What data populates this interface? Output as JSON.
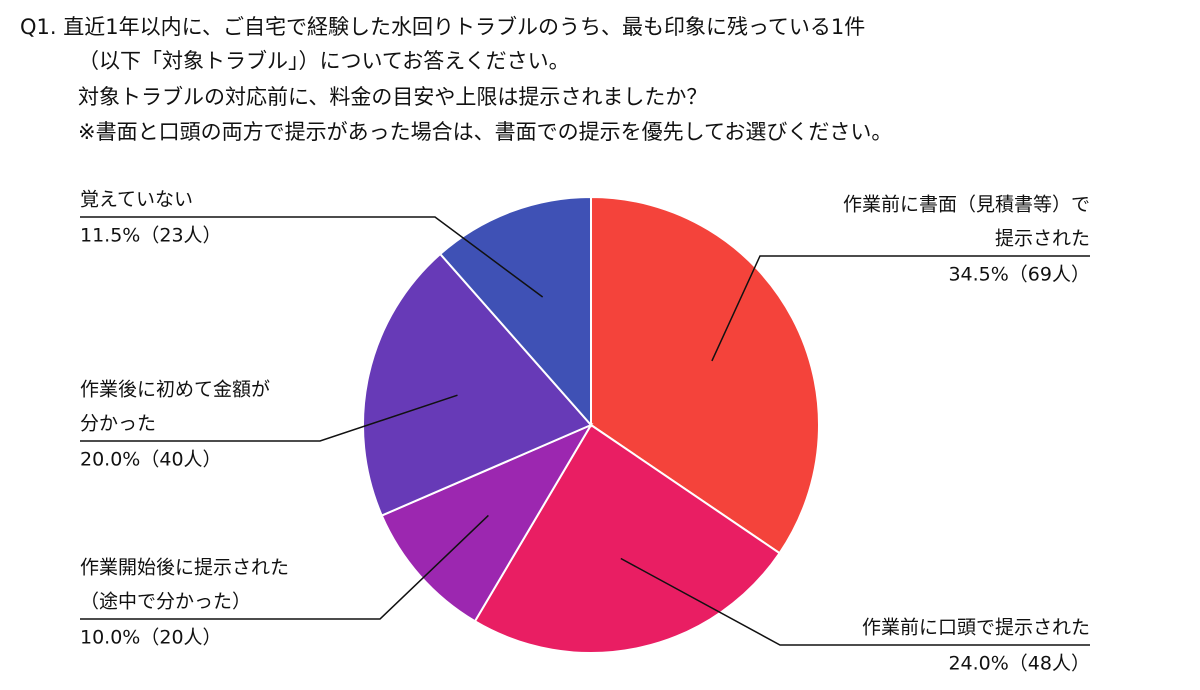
{
  "chart_data": {
    "type": "pie",
    "title": [
      "Q1. 直近1年以内に、ご自宅で経験した水回りトラブルのうち、最も印象に残っている1件",
      "（以下「対象トラブル」）についてお答えください。",
      "対象トラブルの対応前に、料金の目安や上限は提示されましたか？",
      "※書面と口頭の両方で提示があった場合は、書面での提示を優先してお選びください。"
    ],
    "categories": [
      [
        "作業前に書面（見積書等）で",
        "提示された"
      ],
      [
        "作業前に口頭で提示された"
      ],
      [
        "作業開始後に提示された",
        "（途中で分かった）"
      ],
      [
        "作業後に初めて金額が",
        "分かった"
      ],
      [
        "覚えていない"
      ]
    ],
    "values": [
      34.5,
      24.0,
      10.0,
      20.0,
      11.5
    ],
    "value_labels": [
      "34.5%（69人）",
      "24.0%（48人）",
      "10.0%（20人）",
      "20.0%（40人）",
      "11.5%（23人）"
    ],
    "colors": [
      "#f4433b",
      "#e91e63",
      "#9c27b0",
      "#673ab7",
      "#3f51b5"
    ]
  }
}
